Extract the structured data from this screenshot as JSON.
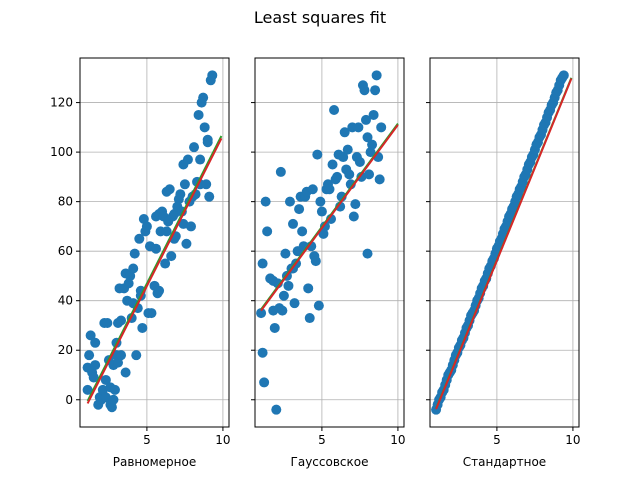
{
  "figure": {
    "title": "Least squares fit"
  },
  "colors": {
    "points": "#1f77b4",
    "fit_red": "#d62728",
    "fit_green": "#2ca02c",
    "grid": "#b0b0b0"
  },
  "chart_data": [
    {
      "type": "scatter",
      "xlabel": "Равномерное",
      "ylabel": "",
      "xlim": [
        0.6,
        10.4
      ],
      "ylim": [
        -11,
        138
      ],
      "xticks": [
        5,
        10
      ],
      "yticks": [
        0,
        20,
        40,
        60,
        80,
        100,
        120
      ],
      "show_ytick_labels": true,
      "grid": true,
      "points": [
        [
          1.1,
          4
        ],
        [
          1.1,
          13
        ],
        [
          1.2,
          18
        ],
        [
          1.3,
          26
        ],
        [
          1.4,
          11
        ],
        [
          1.5,
          9
        ],
        [
          1.6,
          23
        ],
        [
          1.6,
          14
        ],
        [
          1.8,
          -2
        ],
        [
          1.9,
          1
        ],
        [
          2.0,
          0
        ],
        [
          2.1,
          4
        ],
        [
          2.2,
          31
        ],
        [
          2.3,
          8
        ],
        [
          2.3,
          1
        ],
        [
          2.4,
          31
        ],
        [
          2.5,
          16
        ],
        [
          2.6,
          -2
        ],
        [
          2.6,
          5
        ],
        [
          2.7,
          -3
        ],
        [
          2.8,
          0
        ],
        [
          2.8,
          14
        ],
        [
          2.9,
          4
        ],
        [
          3.0,
          18
        ],
        [
          3.0,
          23
        ],
        [
          3.1,
          31
        ],
        [
          3.1,
          15
        ],
        [
          3.2,
          45
        ],
        [
          3.3,
          18
        ],
        [
          3.3,
          32
        ],
        [
          3.5,
          45
        ],
        [
          3.6,
          51
        ],
        [
          3.6,
          11
        ],
        [
          3.7,
          40
        ],
        [
          3.8,
          47
        ],
        [
          3.9,
          50
        ],
        [
          4.0,
          33
        ],
        [
          4.1,
          53
        ],
        [
          4.1,
          39
        ],
        [
          4.2,
          59
        ],
        [
          4.3,
          18
        ],
        [
          4.4,
          37
        ],
        [
          4.5,
          65
        ],
        [
          4.6,
          44
        ],
        [
          4.6,
          42
        ],
        [
          4.7,
          29
        ],
        [
          4.8,
          73
        ],
        [
          4.9,
          68
        ],
        [
          5.0,
          70
        ],
        [
          5.1,
          35
        ],
        [
          5.2,
          62
        ],
        [
          5.3,
          35
        ],
        [
          5.5,
          46
        ],
        [
          5.6,
          61
        ],
        [
          5.6,
          74
        ],
        [
          5.7,
          43
        ],
        [
          5.8,
          75
        ],
        [
          5.8,
          44
        ],
        [
          5.9,
          68
        ],
        [
          6.0,
          76
        ],
        [
          6.1,
          74
        ],
        [
          6.2,
          55
        ],
        [
          6.3,
          84
        ],
        [
          6.3,
          68
        ],
        [
          6.4,
          72
        ],
        [
          6.5,
          85
        ],
        [
          6.6,
          58
        ],
        [
          6.7,
          74
        ],
        [
          6.8,
          75
        ],
        [
          6.8,
          65
        ],
        [
          6.9,
          66
        ],
        [
          7.0,
          78
        ],
        [
          7.1,
          81
        ],
        [
          7.2,
          83
        ],
        [
          7.3,
          76
        ],
        [
          7.4,
          95
        ],
        [
          7.4,
          71
        ],
        [
          7.5,
          87
        ],
        [
          7.6,
          63
        ],
        [
          7.7,
          97
        ],
        [
          7.8,
          80
        ],
        [
          7.9,
          70
        ],
        [
          8.0,
          82
        ],
        [
          8.1,
          102
        ],
        [
          8.2,
          83
        ],
        [
          8.3,
          88
        ],
        [
          8.4,
          115
        ],
        [
          8.5,
          97
        ],
        [
          8.5,
          87
        ],
        [
          8.6,
          120
        ],
        [
          8.7,
          122
        ],
        [
          8.8,
          110
        ],
        [
          8.9,
          87
        ],
        [
          9.0,
          104
        ],
        [
          9.0,
          105
        ],
        [
          9.1,
          82
        ],
        [
          9.2,
          129
        ],
        [
          9.3,
          131
        ]
      ],
      "fits": [
        {
          "color": "green",
          "x": [
            1.1,
            9.9
          ],
          "y": [
            -0.5,
            106.5
          ]
        },
        {
          "color": "red",
          "x": [
            1.1,
            9.9
          ],
          "y": [
            -1.5,
            105.5
          ]
        }
      ]
    },
    {
      "type": "scatter",
      "xlabel": "Гауссовское",
      "ylabel": "",
      "xlim": [
        0.6,
        10.4
      ],
      "ylim": [
        -11,
        138
      ],
      "xticks": [
        5,
        10
      ],
      "yticks": [
        0,
        20,
        40,
        60,
        80,
        100,
        120
      ],
      "show_ytick_labels": false,
      "grid": true,
      "points": [
        [
          1.0,
          35
        ],
        [
          1.1,
          55
        ],
        [
          1.1,
          19
        ],
        [
          1.2,
          7
        ],
        [
          1.3,
          80
        ],
        [
          1.4,
          68
        ],
        [
          1.6,
          49
        ],
        [
          1.8,
          48
        ],
        [
          1.8,
          36
        ],
        [
          1.9,
          29
        ],
        [
          2.0,
          -4
        ],
        [
          2.1,
          47
        ],
        [
          2.2,
          37
        ],
        [
          2.3,
          92
        ],
        [
          2.4,
          36
        ],
        [
          2.5,
          42
        ],
        [
          2.6,
          59
        ],
        [
          2.7,
          50
        ],
        [
          2.8,
          46
        ],
        [
          2.9,
          80
        ],
        [
          3.0,
          53
        ],
        [
          3.1,
          53
        ],
        [
          3.1,
          71
        ],
        [
          3.2,
          39
        ],
        [
          3.3,
          55
        ],
        [
          3.4,
          60
        ],
        [
          3.5,
          77
        ],
        [
          3.6,
          82
        ],
        [
          3.7,
          68
        ],
        [
          3.8,
          62
        ],
        [
          3.9,
          82
        ],
        [
          4.0,
          84
        ],
        [
          4.1,
          45
        ],
        [
          4.2,
          33
        ],
        [
          4.3,
          62
        ],
        [
          4.4,
          85
        ],
        [
          4.5,
          58
        ],
        [
          4.6,
          56
        ],
        [
          4.7,
          99
        ],
        [
          4.8,
          38
        ],
        [
          4.9,
          80
        ],
        [
          5.0,
          76
        ],
        [
          5.1,
          67
        ],
        [
          5.2,
          70
        ],
        [
          5.3,
          85
        ],
        [
          5.4,
          87
        ],
        [
          5.5,
          85
        ],
        [
          5.6,
          73
        ],
        [
          5.7,
          95
        ],
        [
          5.8,
          117
        ],
        [
          5.9,
          89
        ],
        [
          6.0,
          90
        ],
        [
          6.1,
          99
        ],
        [
          6.2,
          78
        ],
        [
          6.3,
          82
        ],
        [
          6.4,
          98
        ],
        [
          6.5,
          108
        ],
        [
          6.6,
          93
        ],
        [
          6.7,
          101
        ],
        [
          6.8,
          91
        ],
        [
          6.9,
          87
        ],
        [
          7.0,
          110
        ],
        [
          7.1,
          74
        ],
        [
          7.2,
          79
        ],
        [
          7.3,
          98
        ],
        [
          7.4,
          110
        ],
        [
          7.5,
          96
        ],
        [
          7.6,
          90
        ],
        [
          7.7,
          127
        ],
        [
          7.8,
          125
        ],
        [
          7.9,
          113
        ],
        [
          8.0,
          106
        ],
        [
          8.0,
          59
        ],
        [
          8.1,
          91
        ],
        [
          8.2,
          100
        ],
        [
          8.3,
          103
        ],
        [
          8.4,
          115
        ],
        [
          8.5,
          125
        ],
        [
          8.6,
          131
        ],
        [
          8.7,
          98
        ],
        [
          8.8,
          89
        ],
        [
          8.9,
          110
        ]
      ],
      "fits": [
        {
          "color": "green",
          "x": [
            1.0,
            10.0
          ],
          "y": [
            36.5,
            111.5
          ]
        },
        {
          "color": "red",
          "x": [
            1.0,
            10.0
          ],
          "y": [
            36,
            111
          ]
        }
      ]
    },
    {
      "type": "scatter",
      "xlabel": "Стандартное",
      "ylabel": "",
      "xlim": [
        0.6,
        10.4
      ],
      "ylim": [
        -11,
        138
      ],
      "xticks": [
        5,
        10
      ],
      "yticks": [
        0,
        20,
        40,
        60,
        80,
        100,
        120
      ],
      "show_ytick_labels": false,
      "grid": true,
      "points": [
        [
          1.0,
          -4
        ],
        [
          1.1,
          -2
        ],
        [
          1.2,
          0
        ],
        [
          1.3,
          1
        ],
        [
          1.4,
          3
        ],
        [
          1.5,
          4
        ],
        [
          1.6,
          6
        ],
        [
          1.7,
          8
        ],
        [
          1.8,
          10
        ],
        [
          1.9,
          11
        ],
        [
          2.0,
          12
        ],
        [
          2.1,
          14
        ],
        [
          2.2,
          16
        ],
        [
          2.3,
          18
        ],
        [
          2.4,
          19
        ],
        [
          2.5,
          21
        ],
        [
          2.6,
          22
        ],
        [
          2.7,
          24
        ],
        [
          2.8,
          25
        ],
        [
          2.9,
          27
        ],
        [
          3.0,
          29
        ],
        [
          3.1,
          30
        ],
        [
          3.2,
          32
        ],
        [
          3.3,
          34
        ],
        [
          3.4,
          35
        ],
        [
          3.5,
          36
        ],
        [
          3.6,
          38
        ],
        [
          3.7,
          40
        ],
        [
          3.8,
          41
        ],
        [
          3.9,
          43
        ],
        [
          4.0,
          45
        ],
        [
          4.1,
          46
        ],
        [
          4.2,
          48
        ],
        [
          4.3,
          49
        ],
        [
          4.4,
          51
        ],
        [
          4.5,
          53
        ],
        [
          4.6,
          54
        ],
        [
          4.7,
          56
        ],
        [
          4.8,
          57
        ],
        [
          4.9,
          59
        ],
        [
          5.0,
          61
        ],
        [
          5.1,
          62
        ],
        [
          5.2,
          64
        ],
        [
          5.3,
          65
        ],
        [
          5.4,
          67
        ],
        [
          5.5,
          69
        ],
        [
          5.6,
          70
        ],
        [
          5.7,
          72
        ],
        [
          5.8,
          74
        ],
        [
          5.9,
          75
        ],
        [
          6.0,
          77
        ],
        [
          6.1,
          78
        ],
        [
          6.2,
          80
        ],
        [
          6.3,
          82
        ],
        [
          6.4,
          83
        ],
        [
          6.5,
          85
        ],
        [
          6.6,
          86
        ],
        [
          6.7,
          88
        ],
        [
          6.8,
          90
        ],
        [
          6.9,
          91
        ],
        [
          7.0,
          93
        ],
        [
          7.1,
          95
        ],
        [
          7.2,
          96
        ],
        [
          7.3,
          98
        ],
        [
          7.4,
          99
        ],
        [
          7.5,
          101
        ],
        [
          7.6,
          103
        ],
        [
          7.7,
          104
        ],
        [
          7.8,
          106
        ],
        [
          7.9,
          107
        ],
        [
          8.0,
          109
        ],
        [
          8.1,
          111
        ],
        [
          8.2,
          112
        ],
        [
          8.3,
          114
        ],
        [
          8.4,
          116
        ],
        [
          8.5,
          117
        ],
        [
          8.6,
          119
        ],
        [
          8.7,
          120
        ],
        [
          8.8,
          122
        ],
        [
          8.9,
          124
        ],
        [
          9.0,
          125
        ],
        [
          9.1,
          127
        ],
        [
          9.2,
          129
        ],
        [
          9.3,
          130
        ],
        [
          9.4,
          131
        ]
      ],
      "fits": [
        {
          "color": "green",
          "x": [
            1.0,
            9.9
          ],
          "y": [
            -3.5,
            130
          ]
        },
        {
          "color": "red",
          "x": [
            1.0,
            9.9
          ],
          "y": [
            -3.8,
            129.7
          ]
        }
      ]
    }
  ]
}
